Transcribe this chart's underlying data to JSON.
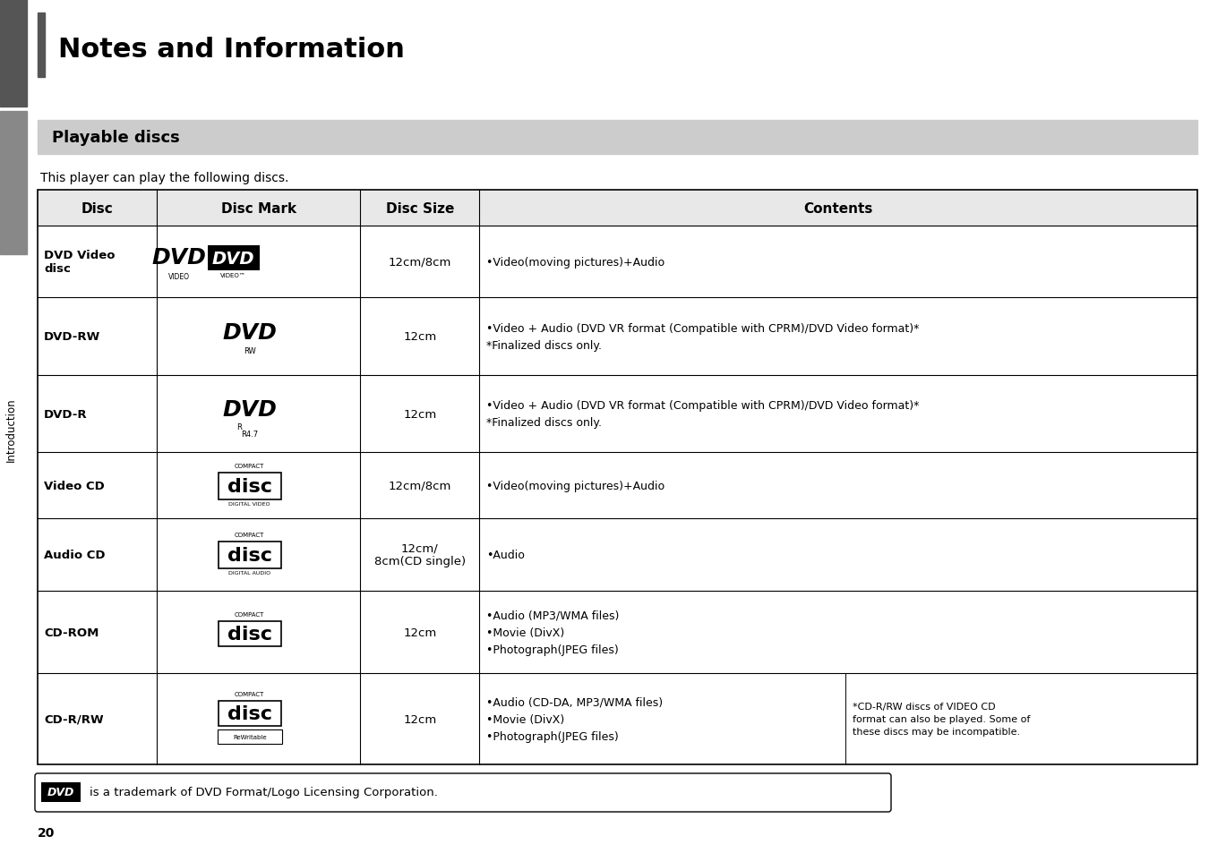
{
  "page_title": "Notes and Information",
  "section_title": "Playable discs",
  "intro_text": "This player can play the following discs.",
  "headers": [
    "Disc",
    "Disc Mark",
    "Disc Size",
    "Contents"
  ],
  "rows": [
    {
      "disc": "DVD Video\ndisc",
      "disc_size": "12cm/8cm",
      "contents": "•Video(moving pictures)+Audio",
      "contents2": ""
    },
    {
      "disc": "DVD-RW",
      "disc_size": "12cm",
      "contents": "•Video + Audio (DVD VR format (Compatible with CPRM)/DVD Video format)*\n*Finalized discs only.",
      "contents2": ""
    },
    {
      "disc": "DVD-R",
      "disc_size": "12cm",
      "contents": "•Video + Audio (DVD VR format (Compatible with CPRM)/DVD Video format)*\n*Finalized discs only.",
      "contents2": ""
    },
    {
      "disc": "Video CD",
      "disc_size": "12cm/8cm",
      "contents": "•Video(moving pictures)+Audio",
      "contents2": ""
    },
    {
      "disc": "Audio CD",
      "disc_size": "12cm/\n8cm(CD single)",
      "contents": "•Audio",
      "contents2": ""
    },
    {
      "disc": "CD-ROM",
      "disc_size": "12cm",
      "contents": "•Audio (MP3/WMA files)\n•Movie (DivX)\n•Photograph(JPEG files)",
      "contents2": ""
    },
    {
      "disc": "CD-R/RW",
      "disc_size": "12cm",
      "contents": "•Audio (CD-DA, MP3/WMA files)\n•Movie (DivX)\n•Photograph(JPEG files)",
      "contents2": "*CD-R/RW discs of VIDEO CD\nformat can also be played. Some of\nthese discs may be incompatible."
    }
  ],
  "footer_text": "is a trademark of DVD Format/Logo Licensing Corporation.",
  "bg_color": "#ffffff",
  "section_bg": "#cccccc",
  "table_border": "#000000",
  "sidebar_dark": "#555555",
  "sidebar_mid": "#888888"
}
